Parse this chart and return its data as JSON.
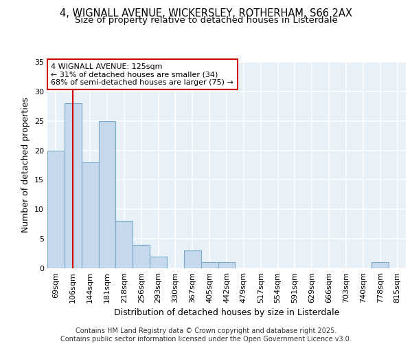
{
  "title1": "4, WIGNALL AVENUE, WICKERSLEY, ROTHERHAM, S66 2AX",
  "title2": "Size of property relative to detached houses in Listerdale",
  "xlabel": "Distribution of detached houses by size in Listerdale",
  "ylabel": "Number of detached properties",
  "categories": [
    "69sqm",
    "106sqm",
    "144sqm",
    "181sqm",
    "218sqm",
    "256sqm",
    "293sqm",
    "330sqm",
    "367sqm",
    "405sqm",
    "442sqm",
    "479sqm",
    "517sqm",
    "554sqm",
    "591sqm",
    "629sqm",
    "666sqm",
    "703sqm",
    "740sqm",
    "778sqm",
    "815sqm"
  ],
  "values": [
    20,
    28,
    18,
    25,
    8,
    4,
    2,
    0,
    3,
    1,
    1,
    0,
    0,
    0,
    0,
    0,
    0,
    0,
    0,
    1,
    0
  ],
  "bar_color": "#c5d8ec",
  "bar_edge_color": "#7aaac8",
  "vline_x_index": 1,
  "vline_color": "#cc0000",
  "annotation_line1": "4 WIGNALL AVENUE: 125sqm",
  "annotation_line2": "← 31% of detached houses are smaller (34)",
  "annotation_line3": "68% of semi-detached houses are larger (75) →",
  "annotation_box_color": "#cc0000",
  "ylim": [
    0,
    35
  ],
  "yticks": [
    0,
    5,
    10,
    15,
    20,
    25,
    30,
    35
  ],
  "background_color": "#e8f0f8",
  "grid_color": "#ffffff",
  "footer": "Contains HM Land Registry data © Crown copyright and database right 2025.\nContains public sector information licensed under the Open Government Licence v3.0.",
  "title_fontsize": 10.5,
  "subtitle_fontsize": 9.5,
  "axis_label_fontsize": 9,
  "tick_fontsize": 8,
  "footer_fontsize": 7
}
